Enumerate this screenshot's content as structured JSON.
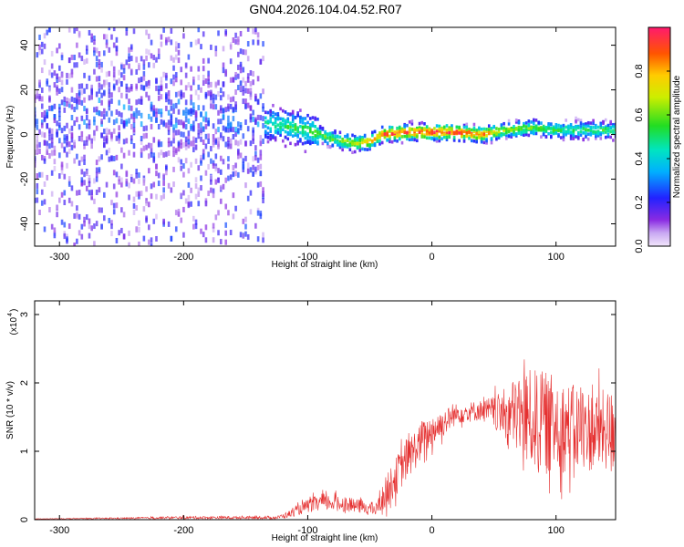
{
  "title": "GN04.2026.104.04.52.R07",
  "chart_data": [
    {
      "type": "heatmap",
      "xlabel": "Height of straight line (km)",
      "ylabel": "Frequency (Hz)",
      "xlim": [
        -320,
        148
      ],
      "ylim": [
        -50,
        48
      ],
      "x_ticks": [
        "-300",
        "-200",
        "-100",
        "0",
        "100"
      ],
      "x_tick_values": [
        -300,
        -200,
        -100,
        0,
        100
      ],
      "y_ticks": [
        "-40",
        "-20",
        "0",
        "20",
        "40"
      ],
      "y_tick_values": [
        -40,
        -20,
        0,
        20,
        40
      ],
      "colorbar": {
        "label": "Normalized spectral amplitude",
        "range": [
          0,
          1
        ],
        "ticks": [
          "0.0",
          "0.2",
          "0.4",
          "0.6",
          "0.8"
        ],
        "tick_values": [
          0.0,
          0.2,
          0.4,
          0.6,
          0.8
        ]
      },
      "ridge": {
        "x": [
          -320,
          -250,
          -200,
          -150,
          -120,
          -100,
          -80,
          -60,
          -50,
          -40,
          -20,
          0,
          20,
          40,
          60,
          80,
          100,
          120,
          148
        ],
        "freq": [
          8,
          10,
          9,
          6,
          4,
          2,
          -2,
          -4,
          -3,
          0,
          1,
          1,
          1,
          0,
          2,
          3,
          2,
          2,
          2
        ],
        "amplitude": [
          0.2,
          0.3,
          0.35,
          0.35,
          0.45,
          0.5,
          0.55,
          0.65,
          0.8,
          0.85,
          0.9,
          0.92,
          0.92,
          0.85,
          0.6,
          0.55,
          0.5,
          0.5,
          0.5
        ]
      }
    },
    {
      "type": "line",
      "xlabel": "Height of straight line (km)",
      "ylabel": "SNR (10 * v/v)",
      "y_multiplier": "(x10",
      "y_multiplier_exp": "4",
      "xlim": [
        -320,
        148
      ],
      "ylim": [
        0,
        3.2
      ],
      "x_ticks": [
        "-300",
        "-200",
        "-100",
        "0",
        "100"
      ],
      "x_tick_values": [
        -300,
        -200,
        -100,
        0,
        100
      ],
      "y_ticks": [
        "0",
        "1",
        "2",
        "3"
      ],
      "y_tick_values": [
        0,
        1,
        2,
        3
      ],
      "color": "#e53030",
      "envelope": {
        "x": [
          -320,
          -250,
          -200,
          -150,
          -125,
          -115,
          -100,
          -90,
          -80,
          -60,
          -45,
          -35,
          -25,
          -15,
          0,
          20,
          40,
          55,
          65,
          75,
          85,
          95,
          110,
          130,
          148
        ],
        "mean": [
          0.01,
          0.02,
          0.03,
          0.03,
          0.03,
          0.08,
          0.2,
          0.25,
          0.25,
          0.2,
          0.15,
          0.45,
          0.75,
          1.0,
          1.3,
          1.55,
          1.6,
          1.55,
          1.55,
          1.5,
          1.45,
          1.4,
          1.35,
          1.3,
          1.3
        ],
        "spread": [
          0.005,
          0.01,
          0.02,
          0.02,
          0.02,
          0.05,
          0.1,
          0.12,
          0.12,
          0.1,
          0.1,
          0.25,
          0.3,
          0.3,
          0.25,
          0.15,
          0.15,
          0.3,
          0.5,
          0.7,
          0.75,
          0.75,
          0.65,
          0.6,
          0.6
        ]
      }
    }
  ]
}
